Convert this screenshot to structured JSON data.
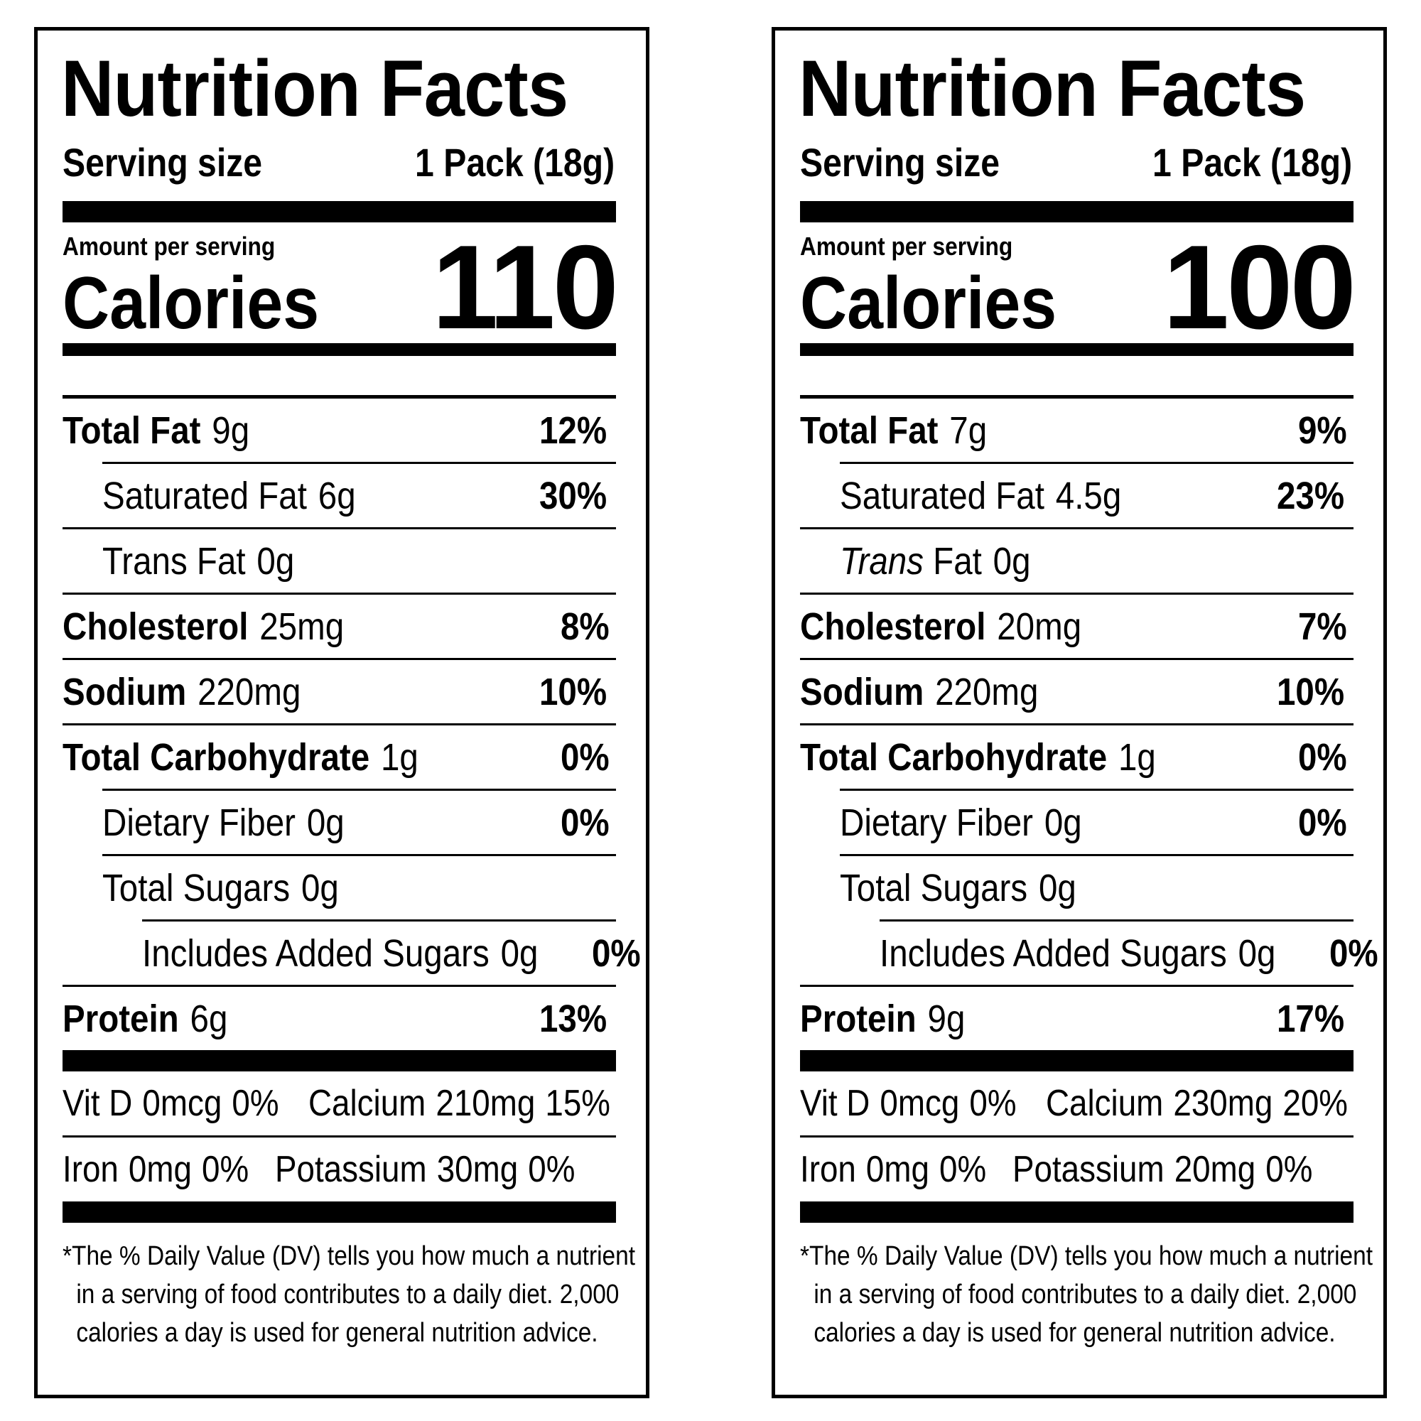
{
  "labels": [
    {
      "title": "Nutrition Facts",
      "serving_label": "Serving size",
      "serving_value": "1 Pack (18g)",
      "amount_per_serving": "Amount per serving",
      "calories_label": "Calories",
      "calories_value": "110",
      "nutrients": {
        "total_fat": {
          "name": "Total Fat",
          "amount": "9g",
          "dv": "12%"
        },
        "saturated_fat": {
          "name": "Saturated Fat",
          "amount": "6g",
          "dv": "30%"
        },
        "trans_fat": {
          "name_italic": "Trans",
          "name": "Fat",
          "amount": "0g"
        },
        "cholesterol": {
          "name": "Cholesterol",
          "amount": "25mg",
          "dv": "8%"
        },
        "sodium": {
          "name": "Sodium",
          "amount": "220mg",
          "dv": "10%"
        },
        "total_carbohydrate": {
          "name": "Total Carbohydrate",
          "amount": "1g",
          "dv": "0%"
        },
        "dietary_fiber": {
          "name": "Dietary Fiber",
          "amount": "0g",
          "dv": "0%"
        },
        "total_sugars": {
          "name": "Total Sugars",
          "amount": "0g"
        },
        "added_sugars": {
          "name": "Includes Added Sugars",
          "amount": "0g",
          "dv": "0%"
        },
        "protein": {
          "name": "Protein",
          "amount": "6g",
          "dv": "13%"
        }
      },
      "vitamins": {
        "vit_d": {
          "name": "Vit D",
          "amount": "0mcg",
          "dv": "0%"
        },
        "calcium": {
          "name": "Calcium",
          "amount": "210mg",
          "dv": "15%"
        },
        "iron": {
          "name": "Iron",
          "amount": "0mg",
          "dv": "0%"
        },
        "potassium": {
          "name": "Potassium",
          "amount": "30mg",
          "dv": "0%"
        }
      },
      "footnote": {
        "line1": "*The % Daily Value (DV) tells you how much a nutrient",
        "line2": "in a serving of food contributes to a daily diet. 2,000",
        "line3": "calories a day is used for general nutrition advice."
      }
    },
    {
      "title": "Nutrition Facts",
      "serving_label": "Serving size",
      "serving_value": "1 Pack (18g)",
      "amount_per_serving": "Amount per serving",
      "calories_label": "Calories",
      "calories_value": "100",
      "nutrients": {
        "total_fat": {
          "name": "Total Fat",
          "amount": "7g",
          "dv": "9%"
        },
        "saturated_fat": {
          "name": "Saturated Fat",
          "amount": "4.5g",
          "dv": "23%"
        },
        "trans_fat": {
          "name_italic": "Trans",
          "name": "Fat",
          "amount": "0g"
        },
        "cholesterol": {
          "name": "Cholesterol",
          "amount": "20mg",
          "dv": "7%"
        },
        "sodium": {
          "name": "Sodium",
          "amount": "220mg",
          "dv": "10%"
        },
        "total_carbohydrate": {
          "name": "Total Carbohydrate",
          "amount": "1g",
          "dv": "0%"
        },
        "dietary_fiber": {
          "name": "Dietary Fiber",
          "amount": "0g",
          "dv": "0%"
        },
        "total_sugars": {
          "name": "Total Sugars",
          "amount": "0g"
        },
        "added_sugars": {
          "name": "Includes Added Sugars",
          "amount": "0g",
          "dv": "0%"
        },
        "protein": {
          "name": "Protein",
          "amount": "9g",
          "dv": "17%"
        }
      },
      "vitamins": {
        "vit_d": {
          "name": "Vit D",
          "amount": "0mcg",
          "dv": "0%"
        },
        "calcium": {
          "name": "Calcium",
          "amount": "230mg",
          "dv": "20%"
        },
        "iron": {
          "name": "Iron",
          "amount": "0mg",
          "dv": "0%"
        },
        "potassium": {
          "name": "Potassium",
          "amount": "20mg",
          "dv": "0%"
        }
      },
      "footnote": {
        "line1": "*The % Daily Value (DV) tells you how much a nutrient",
        "line2": "in a serving of food contributes to a daily diet. 2,000",
        "line3": "calories a day is used for general nutrition advice."
      }
    }
  ]
}
